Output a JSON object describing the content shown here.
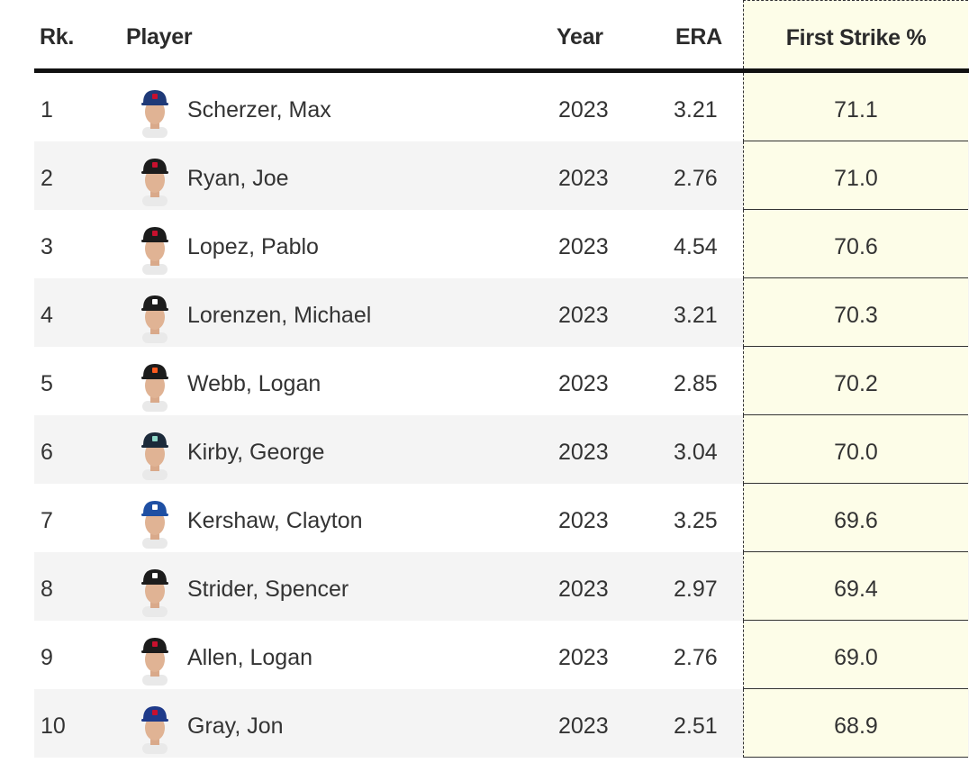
{
  "headers": {
    "rank": "Rk.",
    "player": "Player",
    "year": "Year",
    "era": "ERA",
    "first_strike": "First Strike %"
  },
  "rows": [
    {
      "rank": "1",
      "name": "Scherzer, Max",
      "year": "2023",
      "era": "3.21",
      "first_strike": "71.1",
      "cap": "#1f3a78",
      "logo": "#c8102e"
    },
    {
      "rank": "2",
      "name": "Ryan, Joe",
      "year": "2023",
      "era": "2.76",
      "first_strike": "71.0",
      "cap": "#1c1c1c",
      "logo": "#c8102e"
    },
    {
      "rank": "3",
      "name": "Lopez, Pablo",
      "year": "2023",
      "era": "4.54",
      "first_strike": "70.6",
      "cap": "#1c1c1c",
      "logo": "#c8102e"
    },
    {
      "rank": "4",
      "name": "Lorenzen, Michael",
      "year": "2023",
      "era": "3.21",
      "first_strike": "70.3",
      "cap": "#1c1c1c",
      "logo": "#ffffff"
    },
    {
      "rank": "5",
      "name": "Webb, Logan",
      "year": "2023",
      "era": "2.85",
      "first_strike": "70.2",
      "cap": "#1c1c1c",
      "logo": "#fd5a1e"
    },
    {
      "rank": "6",
      "name": "Kirby, George",
      "year": "2023",
      "era": "3.04",
      "first_strike": "70.0",
      "cap": "#1c2a3a",
      "logo": "#8fd8c8"
    },
    {
      "rank": "7",
      "name": "Kershaw, Clayton",
      "year": "2023",
      "era": "3.25",
      "first_strike": "69.6",
      "cap": "#1e4fa3",
      "logo": "#ffffff"
    },
    {
      "rank": "8",
      "name": "Strider, Spencer",
      "year": "2023",
      "era": "2.97",
      "first_strike": "69.4",
      "cap": "#1c1c1c",
      "logo": "#ffffff"
    },
    {
      "rank": "9",
      "name": "Allen, Logan",
      "year": "2023",
      "era": "2.76",
      "first_strike": "69.0",
      "cap": "#1c1c1c",
      "logo": "#c8102e"
    },
    {
      "rank": "10",
      "name": "Gray, Jon",
      "year": "2023",
      "era": "2.51",
      "first_strike": "68.9",
      "cap": "#1e3a8a",
      "logo": "#c8102e"
    }
  ]
}
